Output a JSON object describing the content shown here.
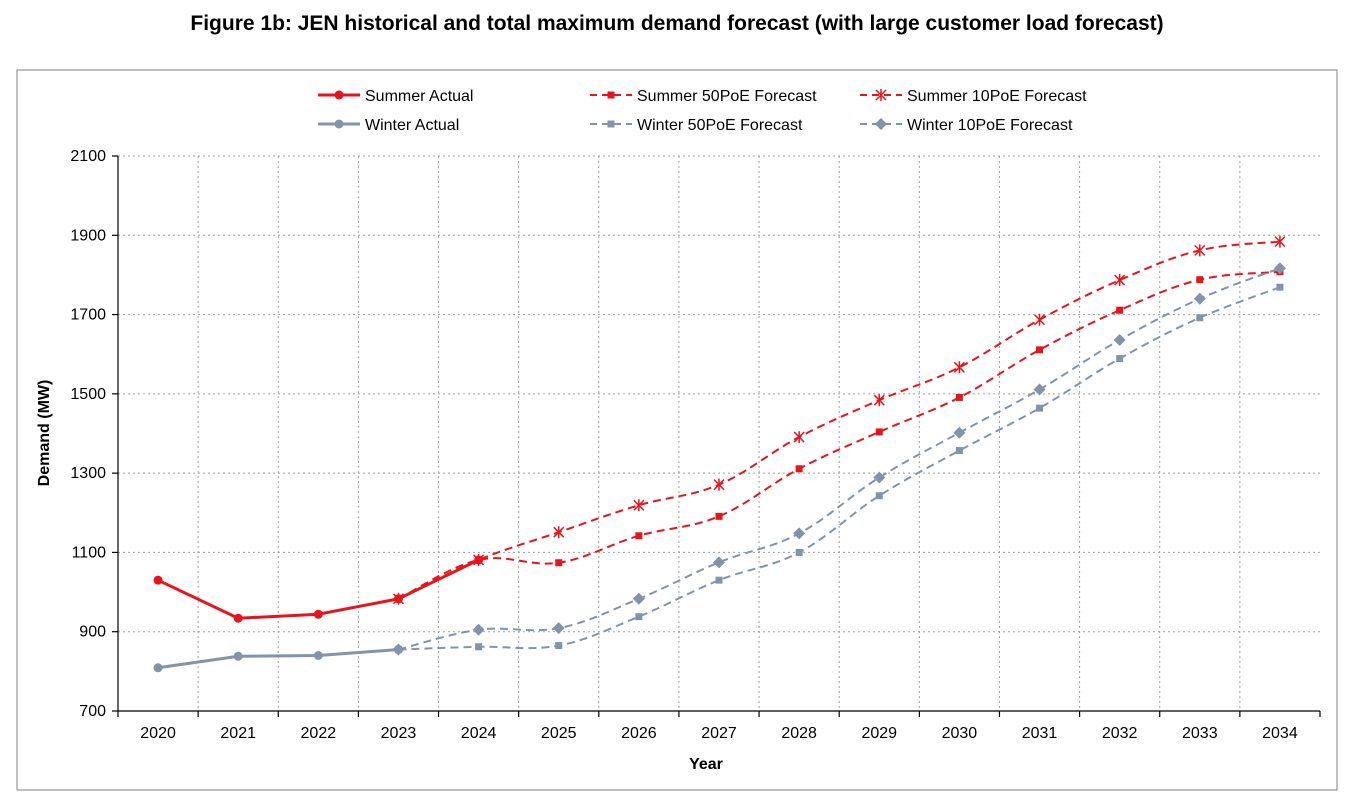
{
  "chart_data": {
    "type": "line",
    "title": "Figure 1b: JEN historical and total maximum demand forecast (with large customer load forecast)",
    "xlabel": "Year",
    "ylabel": "Demand (MW)",
    "ylim": [
      700,
      2100
    ],
    "yticks": [
      700,
      900,
      1100,
      1300,
      1500,
      1700,
      1900,
      2100
    ],
    "categories": [
      "2020",
      "2021",
      "2022",
      "2023",
      "2024",
      "2025",
      "2026",
      "2027",
      "2028",
      "2029",
      "2030",
      "2031",
      "2032",
      "2033",
      "2034"
    ],
    "grid": true,
    "legend_position": "top",
    "series": [
      {
        "name": "Summer Actual",
        "color": "#e8141c",
        "style": "solid",
        "marker": "circle",
        "values": [
          1030,
          934,
          944,
          983,
          1081,
          null,
          null,
          null,
          null,
          null,
          null,
          null,
          null,
          null,
          null
        ]
      },
      {
        "name": "Summer 50PoE Forecast",
        "color": "#e8141c",
        "style": "dashed",
        "marker": "square",
        "values": [
          null,
          null,
          null,
          983,
          1081,
          1074,
          1142,
          1191,
          1311,
          1404,
          1491,
          1611,
          1711,
          1788,
          1808
        ]
      },
      {
        "name": "Summer 10PoE Forecast",
        "color": "#e8141c",
        "style": "dashed",
        "marker": "asterisk",
        "values": [
          null,
          null,
          null,
          983,
          1081,
          1151,
          1219,
          1271,
          1391,
          1484,
          1567,
          1687,
          1787,
          1862,
          1884
        ]
      },
      {
        "name": "Winter Actual",
        "color": "#8394aa",
        "style": "solid",
        "marker": "circle",
        "values": [
          809,
          838,
          840,
          855,
          null,
          null,
          null,
          null,
          null,
          null,
          null,
          null,
          null,
          null,
          null
        ]
      },
      {
        "name": "Winter 50PoE Forecast",
        "color": "#8394aa",
        "style": "dashed",
        "marker": "square",
        "values": [
          null,
          null,
          null,
          855,
          862,
          865,
          938,
          1030,
          1100,
          1243,
          1357,
          1464,
          1589,
          1692,
          1769
        ]
      },
      {
        "name": "Winter 10PoE Forecast",
        "color": "#8394aa",
        "style": "dashed",
        "marker": "diamond",
        "values": [
          null,
          null,
          null,
          855,
          905,
          909,
          983,
          1075,
          1148,
          1289,
          1402,
          1511,
          1636,
          1740,
          1817
        ]
      }
    ]
  }
}
